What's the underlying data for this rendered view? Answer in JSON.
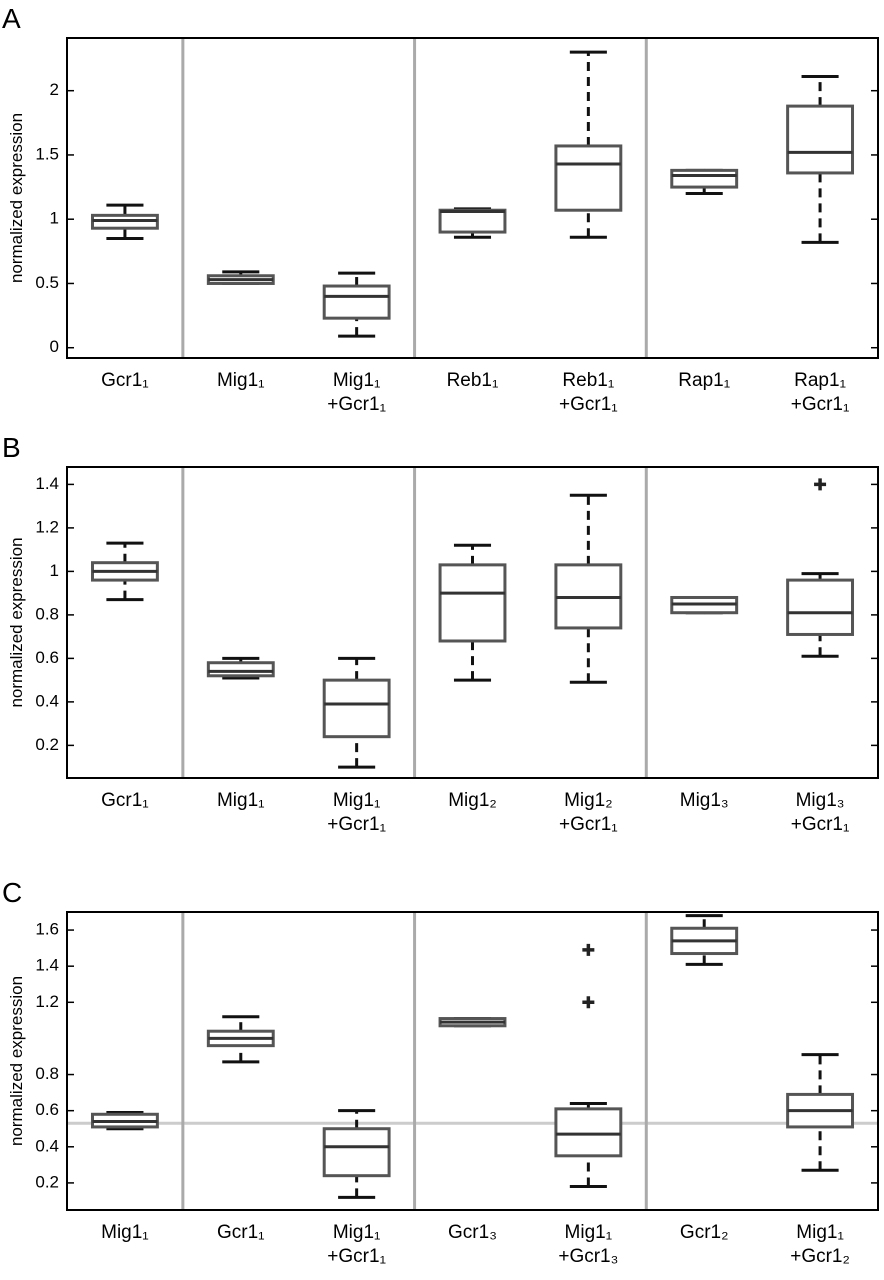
{
  "chart_data": [
    {
      "type": "box",
      "panel_label": "A",
      "ylabel": "normalized expression",
      "categories": [
        "Gcr1₁",
        "Mig1₁",
        "Mig1₁\n+Gcr1₁",
        "Reb1₁",
        "Reb1₁\n+Gcr1₁",
        "Rap1₁",
        "Rap1₁\n+Gcr1₁"
      ],
      "boxes": [
        {
          "low": 0.85,
          "q1": 0.93,
          "median": 0.99,
          "q3": 1.03,
          "high": 1.11,
          "outliers": []
        },
        {
          "low": 0.5,
          "q1": 0.5,
          "median": 0.53,
          "q3": 0.56,
          "high": 0.59,
          "outliers": []
        },
        {
          "low": 0.09,
          "q1": 0.23,
          "median": 0.4,
          "q3": 0.48,
          "high": 0.58,
          "outliers": []
        },
        {
          "low": 0.86,
          "q1": 0.9,
          "median": 1.06,
          "q3": 1.07,
          "high": 1.08,
          "outliers": []
        },
        {
          "low": 0.86,
          "q1": 1.07,
          "median": 1.43,
          "q3": 1.57,
          "high": 2.3,
          "outliers": []
        },
        {
          "low": 1.2,
          "q1": 1.25,
          "median": 1.34,
          "q3": 1.38,
          "high": 1.38,
          "outliers": []
        },
        {
          "low": 0.82,
          "q1": 1.36,
          "median": 1.52,
          "q3": 1.88,
          "high": 2.11,
          "outliers": []
        }
      ],
      "ylim": [
        -0.08,
        2.41
      ],
      "yticks": [
        0,
        0.5,
        1,
        1.5,
        2
      ],
      "group_separators": [
        1,
        3,
        5
      ],
      "box_color": "#555555",
      "whisker_color": "#111111",
      "separator_color": "#aaaaaa"
    },
    {
      "type": "box",
      "panel_label": "B",
      "ylabel": "normalized expression",
      "categories": [
        "Gcr1₁",
        "Mig1₁",
        "Mig1₁\n+Gcr1₁",
        "Mig1₂",
        "Mig1₂\n+Gcr1₁",
        "Mig1₃",
        "Mig1₃\n+Gcr1₁"
      ],
      "boxes": [
        {
          "low": 0.87,
          "q1": 0.96,
          "median": 1.0,
          "q3": 1.04,
          "high": 1.13,
          "outliers": []
        },
        {
          "low": 0.51,
          "q1": 0.52,
          "median": 0.54,
          "q3": 0.58,
          "high": 0.6,
          "outliers": []
        },
        {
          "low": 0.1,
          "q1": 0.24,
          "median": 0.39,
          "q3": 0.5,
          "high": 0.6,
          "outliers": []
        },
        {
          "low": 0.5,
          "q1": 0.68,
          "median": 0.9,
          "q3": 1.03,
          "high": 1.12,
          "outliers": []
        },
        {
          "low": 0.49,
          "q1": 0.74,
          "median": 0.88,
          "q3": 1.03,
          "high": 1.35,
          "outliers": []
        },
        {
          "low": 0.81,
          "q1": 0.81,
          "median": 0.85,
          "q3": 0.88,
          "high": 0.88,
          "outliers": []
        },
        {
          "low": 0.61,
          "q1": 0.71,
          "median": 0.81,
          "q3": 0.96,
          "high": 0.99,
          "outliers": [
            1.4
          ]
        }
      ],
      "ylim": [
        0.05,
        1.48
      ],
      "yticks": [
        0.2,
        0.4,
        0.6,
        0.8,
        1,
        1.2,
        1.4
      ],
      "group_separators": [
        1,
        3,
        5
      ],
      "box_color": "#555555",
      "whisker_color": "#111111",
      "separator_color": "#aaaaaa"
    },
    {
      "type": "box",
      "panel_label": "C",
      "ylabel": "normalized expression",
      "categories": [
        "Mig1₁",
        "Gcr1₁",
        "Mig1₁\n+Gcr1₁",
        "Gcr1₃",
        "Mig1₁\n+Gcr1₃",
        "Gcr1₂",
        "Mig1₁\n+Gcr1₂"
      ],
      "boxes": [
        {
          "low": 0.5,
          "q1": 0.51,
          "median": 0.54,
          "q3": 0.58,
          "high": 0.59,
          "outliers": []
        },
        {
          "low": 0.87,
          "q1": 0.96,
          "median": 1.0,
          "q3": 1.04,
          "high": 1.12,
          "outliers": []
        },
        {
          "low": 0.12,
          "q1": 0.24,
          "median": 0.4,
          "q3": 0.5,
          "high": 0.6,
          "outliers": []
        },
        {
          "low": 1.07,
          "q1": 1.07,
          "median": 1.09,
          "q3": 1.11,
          "high": 1.11,
          "outliers": []
        },
        {
          "low": 0.18,
          "q1": 0.35,
          "median": 0.47,
          "q3": 0.61,
          "high": 0.64,
          "outliers": [
            1.2,
            1.49
          ]
        },
        {
          "low": 1.41,
          "q1": 1.47,
          "median": 1.54,
          "q3": 1.61,
          "high": 1.68,
          "outliers": []
        },
        {
          "low": 0.27,
          "q1": 0.51,
          "median": 0.6,
          "q3": 0.69,
          "high": 0.91,
          "outliers": []
        }
      ],
      "ylim": [
        0.05,
        1.7
      ],
      "yticks": [
        0.2,
        0.4,
        0.6,
        0.8,
        1.2,
        1.4,
        1.6
      ],
      "group_separators": [
        1,
        3,
        5
      ],
      "reference_line": 0.53,
      "reference_color": "#cccccc",
      "box_color": "#555555",
      "whisker_color": "#111111",
      "separator_color": "#aaaaaa"
    }
  ]
}
